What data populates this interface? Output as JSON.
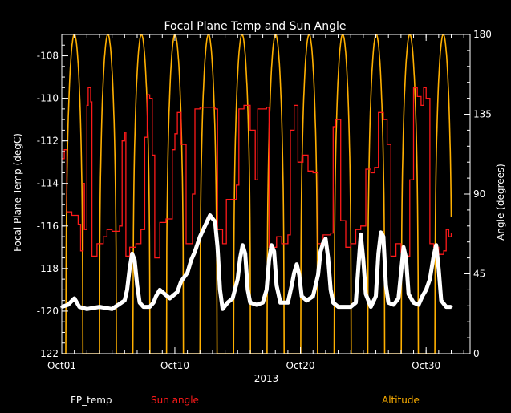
{
  "chart_data": {
    "type": "line",
    "title": "Focal Plane Temp and Sun Angle",
    "xlabel": "2013",
    "ylabel_left": "Focal Plane Temp (degC)",
    "ylabel_right": "Angle (degrees)",
    "x_tick_labels": [
      "Oct01",
      "Oct10",
      "Oct20",
      "Oct30"
    ],
    "x_tick_days": [
      1,
      10,
      20,
      30
    ],
    "xlim_days": [
      1,
      33.5
    ],
    "ylim_left": [
      -122,
      -107
    ],
    "ylim_right": [
      0,
      180
    ],
    "y_left_ticks": [
      -108,
      -110,
      -112,
      -114,
      -116,
      -118,
      -120,
      -122
    ],
    "y_right_ticks": [
      180,
      135,
      90,
      45,
      0
    ],
    "legend_placement": "bottom",
    "series": [
      {
        "name": "FP_temp",
        "color": "#ffffff",
        "marker": "*",
        "axis": "left",
        "points": [
          [
            1.0,
            -119.8
          ],
          [
            1.5,
            -119.7
          ],
          [
            2.0,
            -119.4
          ],
          [
            2.4,
            -119.8
          ],
          [
            3.0,
            -119.9
          ],
          [
            4.0,
            -119.8
          ],
          [
            5.0,
            -119.9
          ],
          [
            5.5,
            -119.7
          ],
          [
            6.0,
            -119.5
          ],
          [
            6.2,
            -119.0
          ],
          [
            6.4,
            -118.0
          ],
          [
            6.6,
            -117.3
          ],
          [
            6.8,
            -117.6
          ],
          [
            7.0,
            -118.8
          ],
          [
            7.2,
            -119.6
          ],
          [
            7.5,
            -119.8
          ],
          [
            8.0,
            -119.8
          ],
          [
            8.3,
            -119.6
          ],
          [
            8.5,
            -119.3
          ],
          [
            8.8,
            -119.0
          ],
          [
            9.2,
            -119.2
          ],
          [
            9.6,
            -119.4
          ],
          [
            10.2,
            -119.1
          ],
          [
            10.5,
            -118.6
          ],
          [
            11.0,
            -118.2
          ],
          [
            11.3,
            -117.6
          ],
          [
            11.6,
            -117.2
          ],
          [
            12.0,
            -116.5
          ],
          [
            12.4,
            -116.0
          ],
          [
            12.8,
            -115.5
          ],
          [
            13.2,
            -115.8
          ],
          [
            13.4,
            -117.0
          ],
          [
            13.6,
            -119.0
          ],
          [
            13.8,
            -119.9
          ],
          [
            14.2,
            -119.6
          ],
          [
            14.6,
            -119.4
          ],
          [
            15.0,
            -118.5
          ],
          [
            15.2,
            -117.5
          ],
          [
            15.4,
            -116.9
          ],
          [
            15.6,
            -117.3
          ],
          [
            15.8,
            -119.0
          ],
          [
            16.0,
            -119.6
          ],
          [
            16.5,
            -119.7
          ],
          [
            17.0,
            -119.6
          ],
          [
            17.3,
            -119.0
          ],
          [
            17.5,
            -117.6
          ],
          [
            17.7,
            -116.9
          ],
          [
            17.9,
            -117.2
          ],
          [
            18.1,
            -118.8
          ],
          [
            18.4,
            -119.6
          ],
          [
            19.0,
            -119.6
          ],
          [
            19.3,
            -118.8
          ],
          [
            19.5,
            -118.2
          ],
          [
            19.7,
            -117.8
          ],
          [
            19.9,
            -118.3
          ],
          [
            20.1,
            -119.3
          ],
          [
            20.5,
            -119.5
          ],
          [
            21.0,
            -119.3
          ],
          [
            21.4,
            -118.3
          ],
          [
            21.6,
            -117.2
          ],
          [
            21.8,
            -116.8
          ],
          [
            22.0,
            -116.6
          ],
          [
            22.2,
            -117.5
          ],
          [
            22.4,
            -119.0
          ],
          [
            22.6,
            -119.6
          ],
          [
            23.0,
            -119.8
          ],
          [
            24.0,
            -119.8
          ],
          [
            24.4,
            -119.6
          ],
          [
            24.6,
            -118.0
          ],
          [
            24.8,
            -116.4
          ],
          [
            25.0,
            -117.6
          ],
          [
            25.2,
            -119.2
          ],
          [
            25.6,
            -119.8
          ],
          [
            26.0,
            -119.3
          ],
          [
            26.2,
            -117.3
          ],
          [
            26.4,
            -116.3
          ],
          [
            26.6,
            -116.5
          ],
          [
            26.8,
            -118.8
          ],
          [
            27.0,
            -119.6
          ],
          [
            27.4,
            -119.7
          ],
          [
            27.8,
            -119.4
          ],
          [
            28.0,
            -118.2
          ],
          [
            28.2,
            -117.0
          ],
          [
            28.4,
            -117.5
          ],
          [
            28.6,
            -119.2
          ],
          [
            29.0,
            -119.6
          ],
          [
            29.4,
            -119.7
          ],
          [
            29.7,
            -119.3
          ],
          [
            30.0,
            -119.0
          ],
          [
            30.3,
            -118.5
          ],
          [
            30.6,
            -117.4
          ],
          [
            30.8,
            -116.9
          ],
          [
            31.0,
            -118.0
          ],
          [
            31.2,
            -119.5
          ],
          [
            31.6,
            -119.8
          ],
          [
            32.0,
            -119.8
          ]
        ]
      },
      {
        "name": "Sun angle",
        "color": "#ff1a1a",
        "axis": "right",
        "points": [
          [
            1.0,
            110
          ],
          [
            1.2,
            115
          ],
          [
            1.4,
            80
          ],
          [
            1.8,
            78
          ],
          [
            2.3,
            73
          ],
          [
            2.5,
            58
          ],
          [
            2.7,
            96
          ],
          [
            2.8,
            70
          ],
          [
            3.0,
            140
          ],
          [
            3.1,
            150
          ],
          [
            3.3,
            142
          ],
          [
            3.4,
            55
          ],
          [
            3.8,
            62
          ],
          [
            4.3,
            66
          ],
          [
            4.6,
            70
          ],
          [
            5.0,
            69
          ],
          [
            5.4,
            69
          ],
          [
            5.6,
            72
          ],
          [
            5.8,
            120
          ],
          [
            6.0,
            125
          ],
          [
            6.1,
            55
          ],
          [
            6.4,
            60
          ],
          [
            6.9,
            62
          ],
          [
            7.3,
            70
          ],
          [
            7.6,
            122
          ],
          [
            7.8,
            146
          ],
          [
            8.0,
            144
          ],
          [
            8.2,
            112
          ],
          [
            8.4,
            54
          ],
          [
            8.8,
            74
          ],
          [
            9.3,
            76
          ],
          [
            9.8,
            115
          ],
          [
            10.0,
            124
          ],
          [
            10.2,
            136
          ],
          [
            10.5,
            118
          ],
          [
            10.9,
            62
          ],
          [
            11.4,
            90
          ],
          [
            11.6,
            138
          ],
          [
            12.0,
            139
          ],
          [
            13.2,
            138
          ],
          [
            13.4,
            70
          ],
          [
            13.8,
            62
          ],
          [
            14.1,
            87
          ],
          [
            14.6,
            87
          ],
          [
            14.9,
            95
          ],
          [
            15.1,
            138
          ],
          [
            15.5,
            140
          ],
          [
            16.0,
            126
          ],
          [
            16.4,
            98
          ],
          [
            16.6,
            138
          ],
          [
            17.3,
            139
          ],
          [
            17.5,
            60
          ],
          [
            18.1,
            66
          ],
          [
            18.5,
            62
          ],
          [
            19.0,
            67
          ],
          [
            19.2,
            126
          ],
          [
            19.5,
            140
          ],
          [
            19.8,
            108
          ],
          [
            20.2,
            112
          ],
          [
            20.6,
            103
          ],
          [
            21.0,
            102
          ],
          [
            21.4,
            62
          ],
          [
            21.8,
            67
          ],
          [
            22.4,
            68
          ],
          [
            22.6,
            128
          ],
          [
            22.8,
            132
          ],
          [
            23.2,
            75
          ],
          [
            23.6,
            60
          ],
          [
            24.0,
            62
          ],
          [
            24.4,
            70
          ],
          [
            24.8,
            72
          ],
          [
            25.2,
            104
          ],
          [
            25.6,
            102
          ],
          [
            25.9,
            105
          ],
          [
            26.2,
            136
          ],
          [
            26.6,
            132
          ],
          [
            26.9,
            118
          ],
          [
            27.2,
            55
          ],
          [
            27.6,
            62
          ],
          [
            28.0,
            57
          ],
          [
            28.4,
            55
          ],
          [
            28.7,
            98
          ],
          [
            29.0,
            150
          ],
          [
            29.3,
            145
          ],
          [
            29.6,
            140
          ],
          [
            29.8,
            150
          ],
          [
            30.0,
            144
          ],
          [
            30.3,
            62
          ],
          [
            30.6,
            60
          ],
          [
            31.0,
            56
          ],
          [
            31.4,
            58
          ],
          [
            31.6,
            70
          ],
          [
            31.8,
            66
          ],
          [
            32.0,
            68
          ]
        ]
      },
      {
        "name": "Altitude",
        "color": "#ffb000",
        "axis": "right",
        "period_days": 2.67,
        "first_peak_day": 2.0,
        "min": 0,
        "max": 180,
        "x_end_day": 32.0
      }
    ]
  }
}
